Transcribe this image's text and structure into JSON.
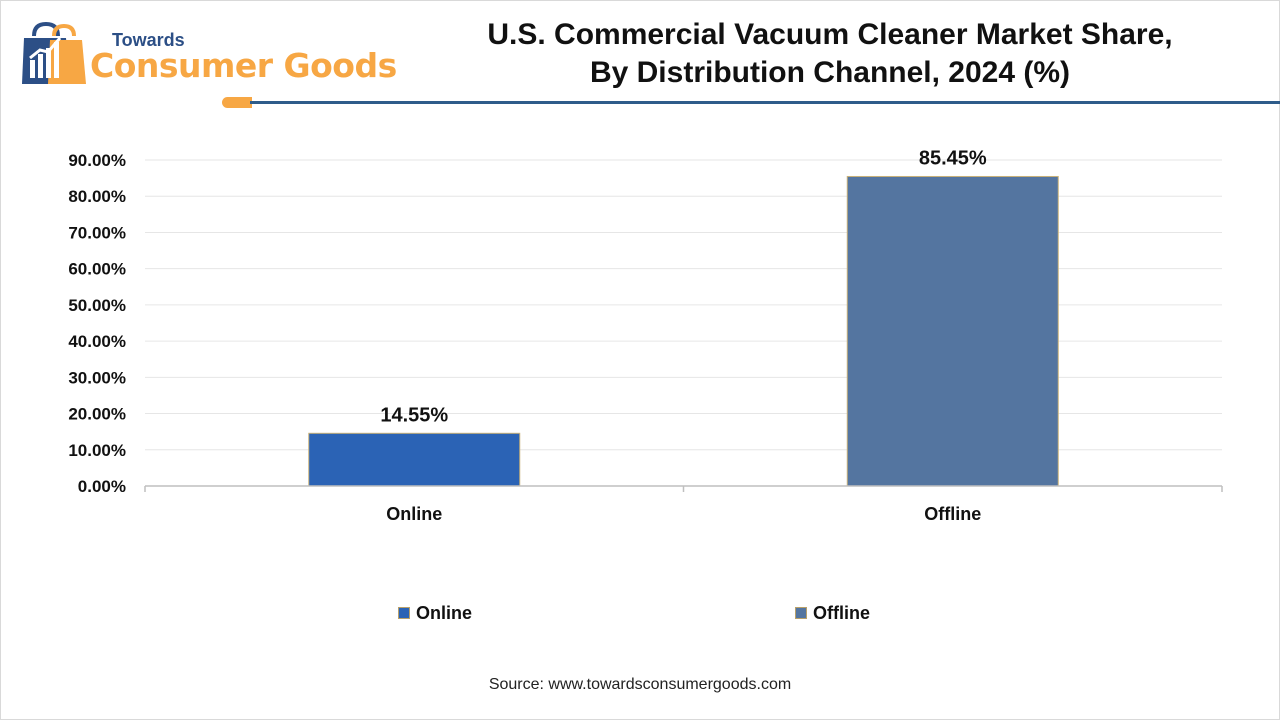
{
  "logo": {
    "top_text": "Towards",
    "main_text": "Consumer Goods",
    "icon": "shopping-bag-icon",
    "colors": {
      "blue": "#2c4f86",
      "orange": "#f7a744"
    }
  },
  "header": {
    "title_line1": "U.S. Commercial Vacuum Cleaner Market Share,",
    "title_line2": "By Distribution Channel, 2024 (%)",
    "rule_color": "#2e5c8a"
  },
  "chart_data": {
    "type": "bar",
    "categories": [
      "Online",
      "Offline"
    ],
    "values": [
      14.55,
      85.45
    ],
    "data_labels": [
      "14.55%",
      "85.45%"
    ],
    "colors": [
      "#2b63b5",
      "#5475a0"
    ],
    "ylim": [
      0,
      90
    ],
    "yticks": [
      0,
      10,
      20,
      30,
      40,
      50,
      60,
      70,
      80,
      90
    ],
    "ytick_labels": [
      "0.00%",
      "10.00%",
      "20.00%",
      "30.00%",
      "40.00%",
      "50.00%",
      "60.00%",
      "70.00%",
      "80.00%",
      "90.00%"
    ],
    "grid": true,
    "legend": {
      "position": "bottom",
      "entries": [
        "Online",
        "Offline"
      ]
    }
  },
  "footer": {
    "source": "Source: www.towardsconsumergoods.com"
  }
}
